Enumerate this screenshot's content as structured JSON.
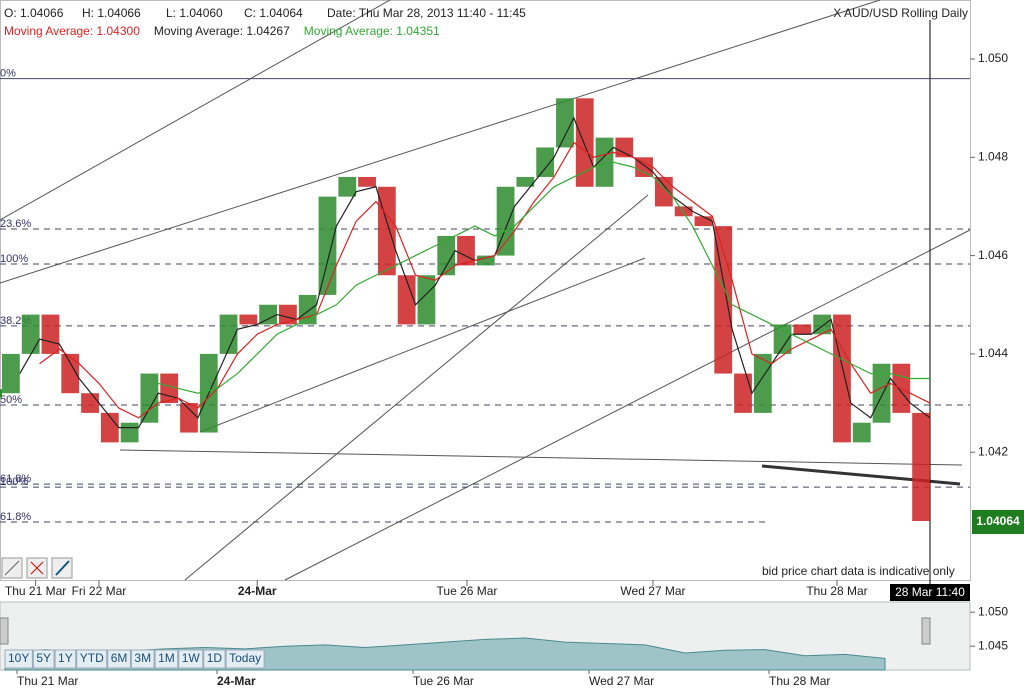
{
  "chart_data": {
    "type": "candle-line",
    "title": "X AUD/USD Rolling Daily",
    "header": {
      "open": "O: 1.04066",
      "high": "H: 1.04066",
      "low": "L: 1.04060",
      "close": "C: 1.04064",
      "date": "Date: Thu Mar 28, 2013 11:40 - 11:45"
    },
    "last_label": "1.04064",
    "crosshair_label": "28 Mar 11:40",
    "note": "bid price chart data is indicative only",
    "xlim": [
      0,
      47
    ],
    "ylim": [
      1.0394,
      1.0512
    ],
    "yticks": [
      1.042,
      1.044,
      1.046,
      1.048,
      {
        "value": 1.05,
        "label": "1.050"
      }
    ],
    "xticks": [
      {
        "value": 1.8,
        "label": "Thu 21 Mar"
      },
      {
        "value": 5,
        "label": "Fri 22 Mar"
      },
      {
        "value": 13,
        "label": "24-Mar"
      },
      {
        "value": 23.6,
        "label": "Tue 26 Mar"
      },
      {
        "value": 33,
        "label": "Wed 27 Mar"
      },
      {
        "value": 42.3,
        "label": "Thu 28 Mar"
      }
    ],
    "up_color": "#2e8b2e",
    "down_color": "#cc2222",
    "values": [
      1.0432,
      1.044,
      1.0448,
      1.044,
      1.0432,
      1.0428,
      1.0422,
      1.0426,
      1.0436,
      1.043,
      1.0424,
      1.044,
      1.0448,
      1.0446,
      1.045,
      1.0446,
      1.0452,
      1.0472,
      1.0476,
      1.0474,
      1.0456,
      1.0446,
      1.0456,
      1.0464,
      1.0458,
      1.046,
      1.0474,
      1.0476,
      1.0482,
      1.0492,
      1.0474,
      1.0484,
      1.048,
      1.0476,
      1.047,
      1.0468,
      1.0466,
      1.0436,
      1.0428,
      1.044,
      1.0446,
      1.0444,
      1.0448,
      1.0422,
      1.0426,
      1.0438,
      1.0428,
      1.0406
    ],
    "series": [
      {
        "name": "Moving Average: 1.04267",
        "color": "#222222",
        "values": [
          null,
          1.0436,
          1.0443,
          1.0442,
          1.0435,
          1.043,
          1.0425,
          1.0425,
          1.0432,
          1.0431,
          1.0427,
          1.0436,
          1.0445,
          1.0446,
          1.0448,
          1.0447,
          1.045,
          1.0466,
          1.0473,
          1.0474,
          1.0461,
          1.045,
          1.0454,
          1.0461,
          1.0459,
          1.046,
          1.047,
          1.0475,
          1.048,
          1.0488,
          1.0478,
          1.0482,
          1.048,
          1.0477,
          1.0472,
          1.0469,
          1.0467,
          1.0445,
          1.0432,
          1.0438,
          1.0444,
          1.0444,
          1.0447,
          1.043,
          1.0427,
          1.0435,
          1.043,
          1.0427
        ]
      },
      {
        "name": "Moving Average: 1.04300",
        "color": "#dd2222",
        "values": [
          null,
          null,
          1.0438,
          1.0441,
          1.0438,
          1.0434,
          1.0429,
          1.0427,
          1.043,
          1.0431,
          1.0429,
          1.0433,
          1.044,
          1.0444,
          1.0446,
          1.0447,
          1.0448,
          1.0458,
          1.0467,
          1.0471,
          1.0466,
          1.0456,
          1.0455,
          1.0458,
          1.0459,
          1.046,
          1.0465,
          1.0471,
          1.0476,
          1.0483,
          1.048,
          1.0481,
          1.048,
          1.0478,
          1.0474,
          1.0471,
          1.0468,
          1.0455,
          1.044,
          1.0438,
          1.0441,
          1.0443,
          1.0445,
          1.0438,
          1.0432,
          1.0434,
          1.0432,
          1.043
        ]
      },
      {
        "name": "Moving Average: 1.04351",
        "color": "#33aa33",
        "values": [
          null,
          null,
          null,
          null,
          null,
          null,
          null,
          null,
          1.0434,
          1.0433,
          1.0432,
          1.0433,
          1.0436,
          1.044,
          1.0444,
          1.0446,
          1.0448,
          1.045,
          1.0454,
          1.0456,
          1.0458,
          1.046,
          1.0462,
          1.0464,
          1.0466,
          1.0464,
          1.0466,
          1.047,
          1.0474,
          1.0476,
          1.0478,
          1.0479,
          1.0478,
          1.0476,
          1.0472,
          1.0466,
          1.0458,
          1.045,
          1.0448,
          1.0446,
          1.0444,
          1.0442,
          1.044,
          1.0438,
          1.0436,
          1.0436,
          1.0435,
          1.0435
        ]
      }
    ],
    "levels": [
      {
        "label": "0%",
        "value": 1.0496
      },
      {
        "label": "23.6%",
        "value": 1.04654
      },
      {
        "label": "100%",
        "value": 1.04583
      },
      {
        "label": "38.2%",
        "value": 1.04457
      },
      {
        "label": "50%",
        "value": 1.04296
      },
      {
        "label": "61.8%",
        "value": 1.04135
      },
      {
        "label": "100%",
        "value": 1.04129
      },
      {
        "label": "61.8%",
        "value": 1.04058
      }
    ],
    "navigator": {
      "ylim": [
        1.0415,
        1.0515
      ],
      "yticks": [
        {
          "value": 1.05,
          "label": "1.050"
        },
        1.045
      ],
      "xlim": [
        0,
        22
      ],
      "xticks": [
        {
          "value": 0.3,
          "label": "Thu 21 Mar"
        },
        {
          "value": 5.3,
          "label": "24-Mar"
        },
        {
          "value": 10.2,
          "label": "Tue 26 Mar"
        },
        {
          "value": 14.6,
          "label": "Wed 27 Mar"
        },
        {
          "value": 19.1,
          "label": "Thu 28 Mar"
        }
      ],
      "color": "#9ec4c8",
      "values": [
        1.044,
        1.0445,
        1.0442,
        1.0443,
        1.0446,
        1.0448,
        1.0446,
        1.045,
        1.0452,
        1.0448,
        1.0452,
        1.0456,
        1.046,
        1.0462,
        1.0456,
        1.0454,
        1.0452,
        1.044,
        1.0444,
        1.0445,
        1.0436,
        1.0438,
        1.0432
      ]
    },
    "ranges": [
      "10Y",
      "5Y",
      "1Y",
      "YTD",
      "6M",
      "3M",
      "1M",
      "1W",
      "1D",
      "Today"
    ]
  }
}
